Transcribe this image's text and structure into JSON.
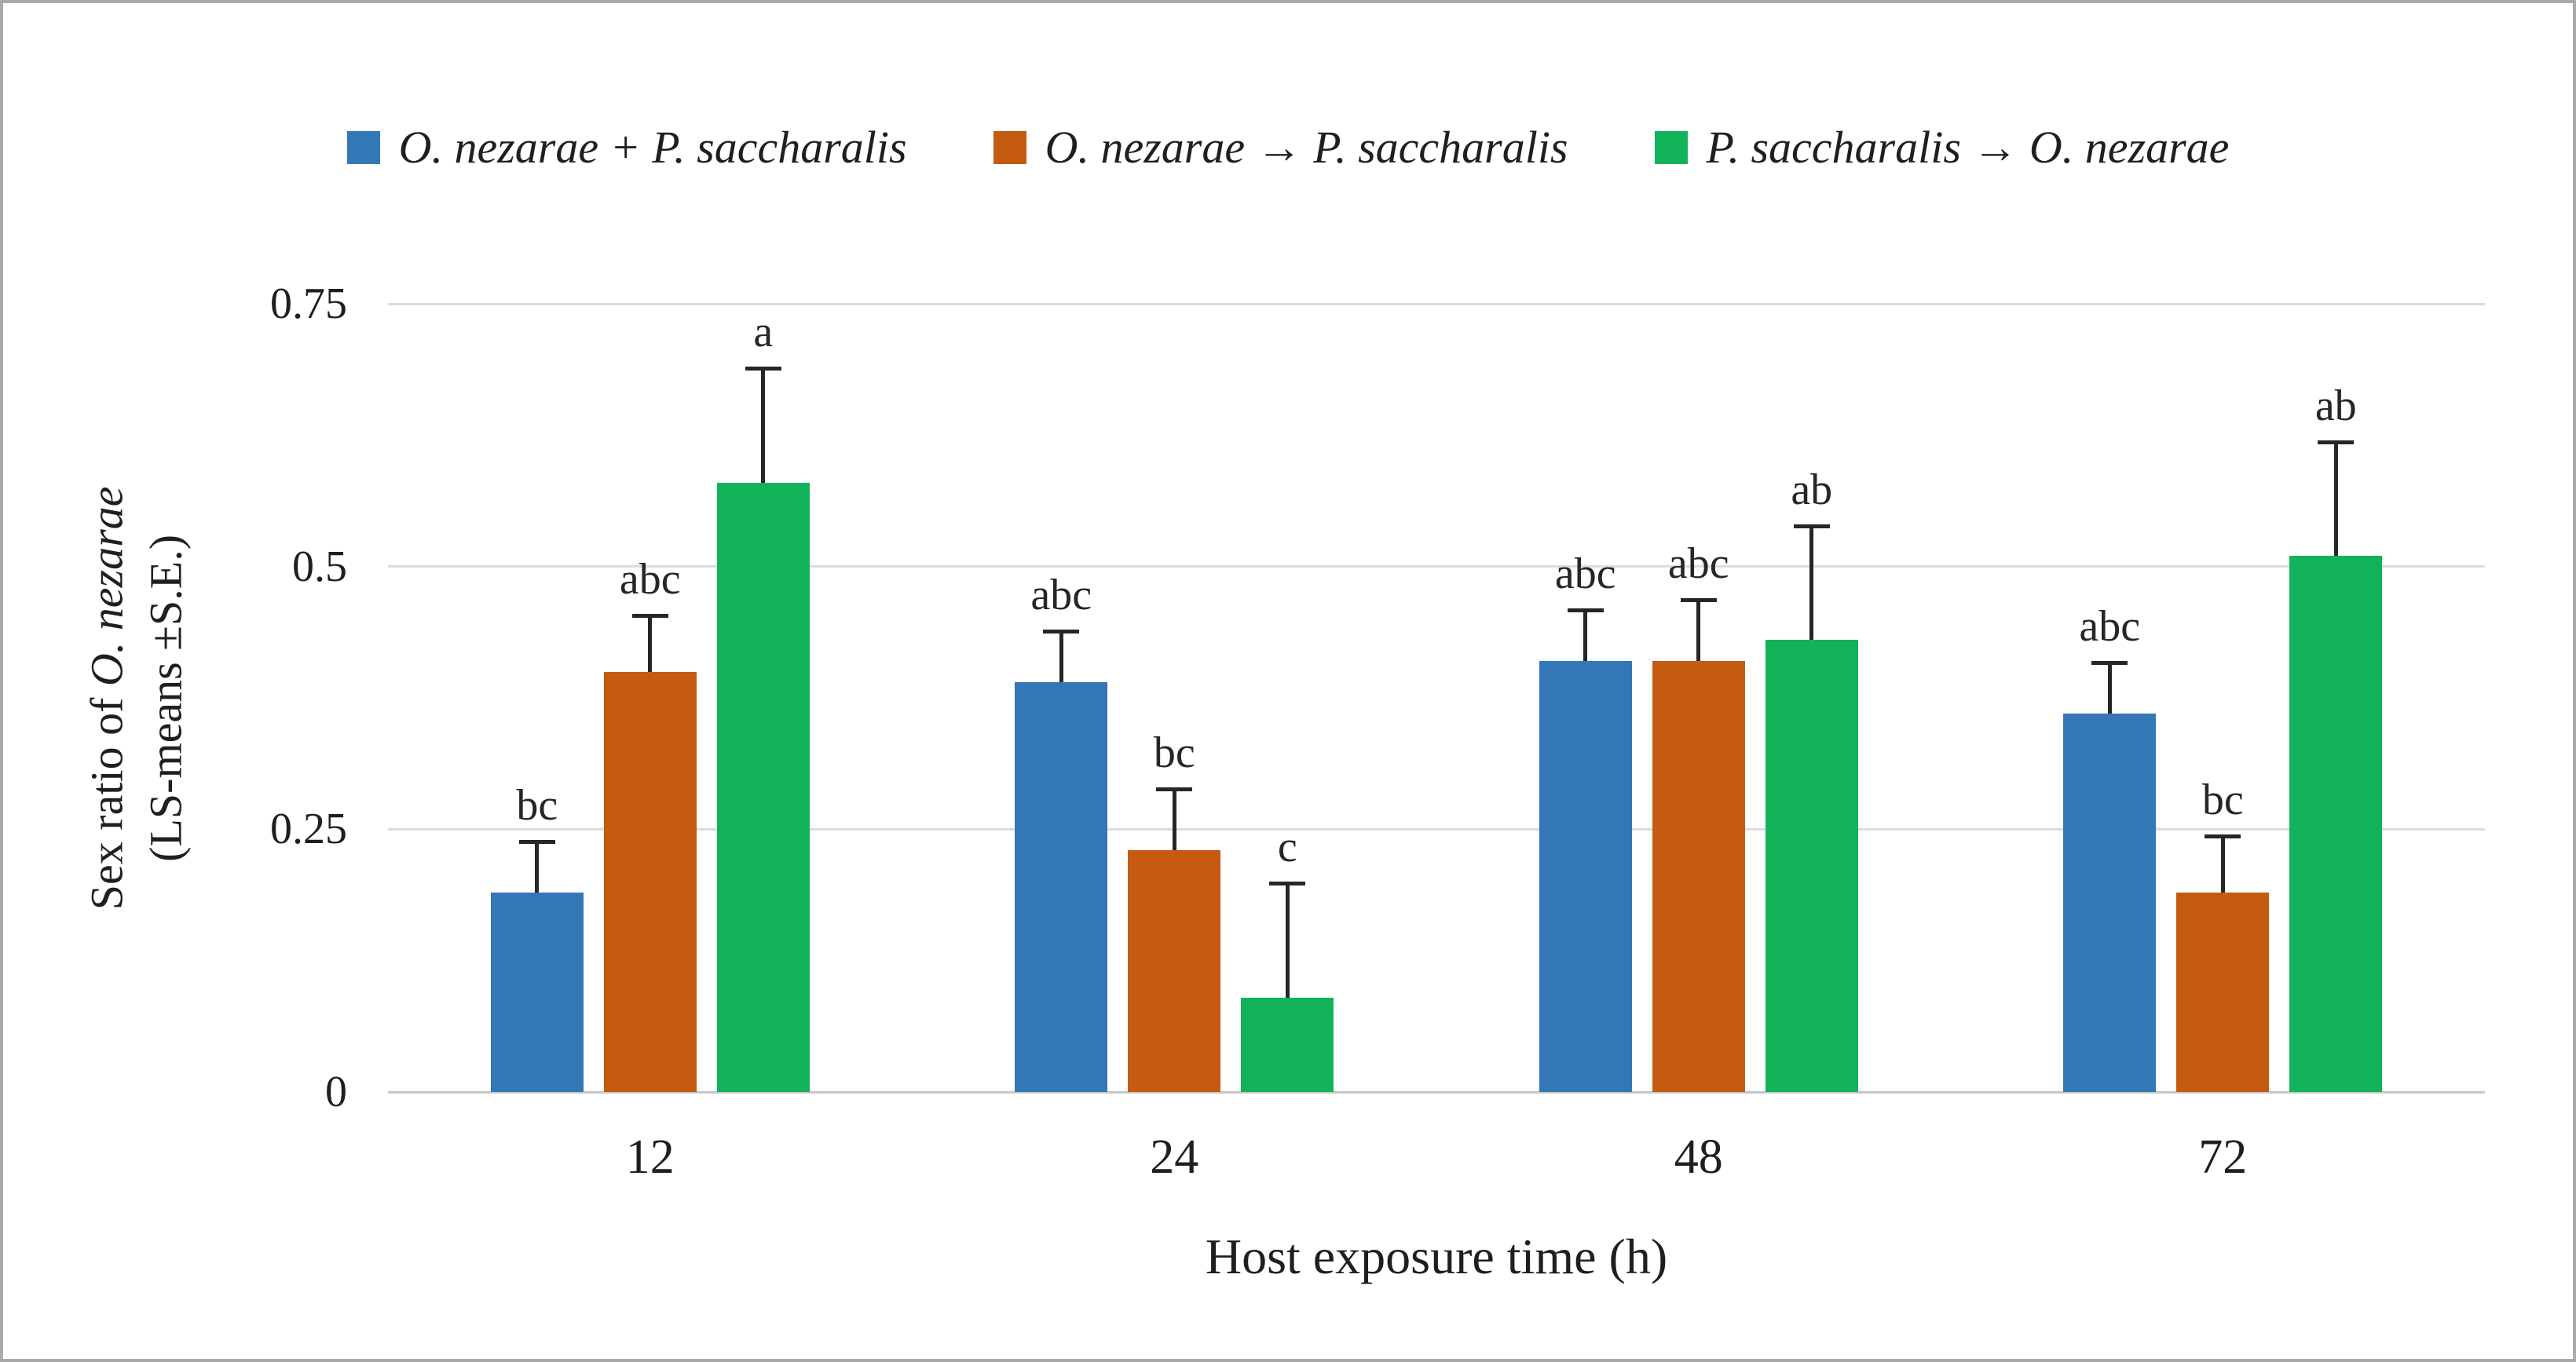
{
  "chart_data": {
    "type": "bar",
    "title": "",
    "xlabel": "Host exposure time (h)",
    "ylabel": {
      "line1_prefix": "Sex ratio of ",
      "line1_species": "O. nezarae",
      "line2": "(LS-means ±S.E.)"
    },
    "categories": [
      "12",
      "24",
      "48",
      "72"
    ],
    "yticks": [
      "0",
      "0.25",
      "0.5",
      "0.75"
    ],
    "ylim": [
      0,
      0.75
    ],
    "grid": "horizontal",
    "legend_position": "top",
    "error_bars": "plus-direction-only",
    "series": [
      {
        "name": "O. nezarae + P. saccharalis",
        "color": "#3477B6",
        "values": [
          0.19,
          0.39,
          0.41,
          0.36
        ],
        "errors": [
          0.05,
          0.05,
          0.05,
          0.05
        ],
        "sig_labels": [
          "bc",
          "abc",
          "abc",
          "abc"
        ]
      },
      {
        "name": "O. nezarae → P. saccharalis",
        "color": "#C55A11",
        "values": [
          0.4,
          0.23,
          0.41,
          0.19
        ],
        "errors": [
          0.055,
          0.06,
          0.06,
          0.055
        ],
        "sig_labels": [
          "abc",
          "bc",
          "abc",
          "bc"
        ]
      },
      {
        "name": "P. saccharalis → O. nezarae",
        "color": "#12B25A",
        "values": [
          0.58,
          0.09,
          0.43,
          0.51
        ],
        "errors": [
          0.11,
          0.11,
          0.11,
          0.11
        ],
        "sig_labels": [
          "a",
          "c",
          "ab",
          "ab"
        ]
      }
    ]
  }
}
